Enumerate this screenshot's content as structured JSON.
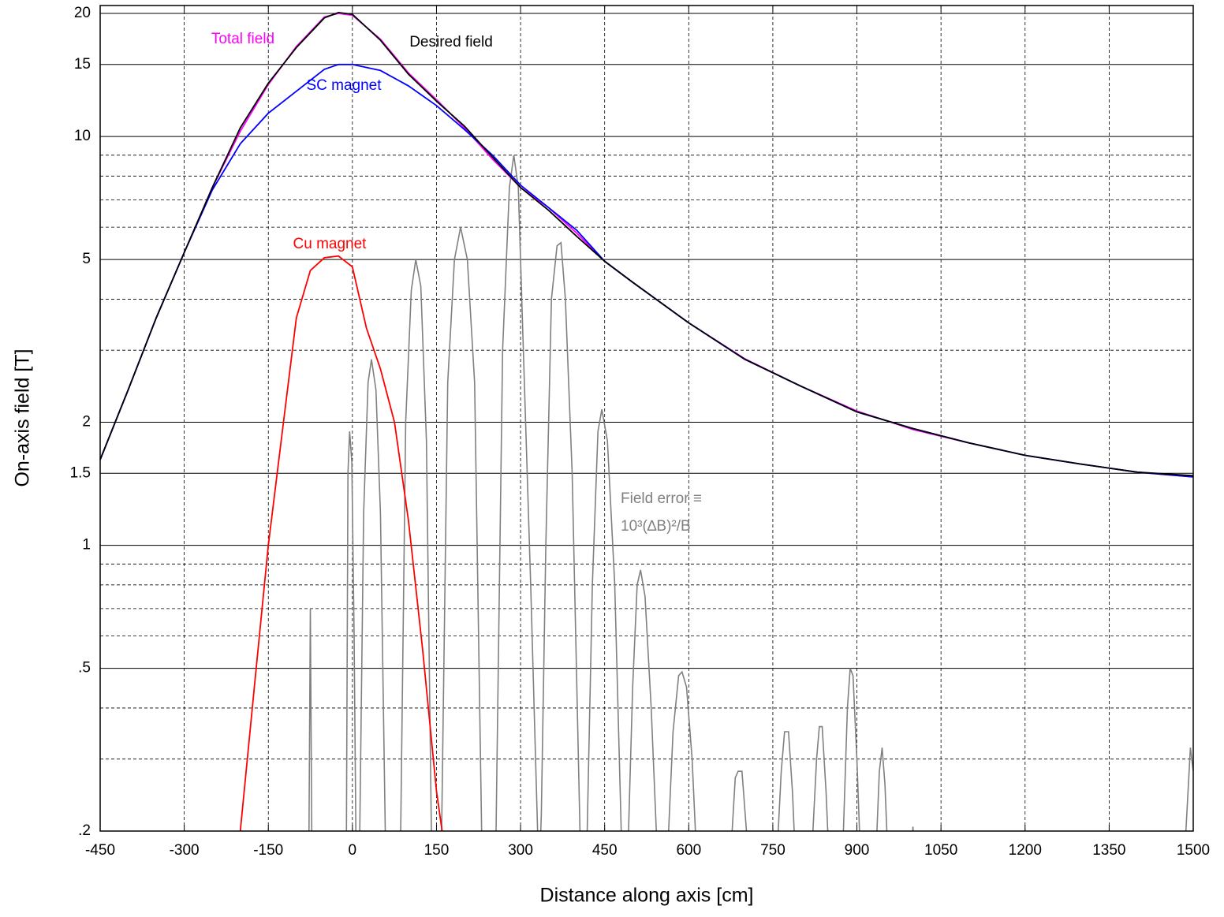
{
  "chart_data": {
    "type": "line",
    "xlabel": "Distance along axis  [cm]",
    "ylabel": "On-axis field  [T]",
    "log_y": true,
    "grid": true,
    "xlim": [
      -450,
      1500
    ],
    "xticks": [
      -450,
      -300,
      -150,
      0,
      150,
      300,
      450,
      600,
      750,
      900,
      1050,
      1200,
      1350,
      1500
    ],
    "ylim": [
      0.2,
      20
    ],
    "yticks": [
      {
        "value": 0.2,
        "label": ".2"
      },
      {
        "value": 0.5,
        "label": ".5"
      },
      1,
      1.5,
      2,
      5,
      10,
      15,
      20
    ],
    "minor_grid": [
      0.3,
      0.4,
      0.6,
      0.7,
      0.8,
      0.9,
      3,
      4,
      6,
      7,
      8,
      9
    ],
    "series": [
      {
        "name": "Total field",
        "color": "#ff00ff",
        "x": [
          -450,
          -400,
          -350,
          -300,
          -250,
          -200,
          -150,
          -100,
          -50,
          -25,
          0,
          50,
          100,
          150,
          200,
          250,
          300,
          350,
          400,
          450,
          500,
          600,
          700,
          800,
          900,
          1000,
          1100,
          1200,
          1300,
          1400,
          1500
        ],
        "values": [
          1.62,
          2.4,
          3.6,
          5.2,
          7.5,
          10.3,
          13.4,
          16.6,
          19.6,
          20.0,
          19.8,
          17.3,
          14.3,
          12.3,
          10.5,
          8.8,
          7.5,
          6.7,
          5.8,
          4.95,
          4.4,
          3.5,
          2.86,
          2.45,
          2.13,
          1.92,
          1.78,
          1.66,
          1.58,
          1.51,
          1.47
        ]
      },
      {
        "name": "Desired field",
        "color": "#000000",
        "x": [
          -450,
          -400,
          -350,
          -300,
          -250,
          -200,
          -150,
          -100,
          -50,
          -25,
          0,
          50,
          100,
          150,
          200,
          250,
          300,
          350,
          400,
          450,
          500,
          600,
          700,
          800,
          900,
          1000,
          1100,
          1200,
          1300,
          1400,
          1500
        ],
        "values": [
          1.62,
          2.4,
          3.6,
          5.2,
          7.5,
          10.5,
          13.5,
          16.5,
          19.5,
          20.1,
          19.9,
          17.2,
          14.2,
          12.2,
          10.6,
          8.9,
          7.5,
          6.6,
          5.7,
          4.95,
          4.4,
          3.5,
          2.85,
          2.45,
          2.12,
          1.93,
          1.78,
          1.66,
          1.58,
          1.51,
          1.48
        ]
      },
      {
        "name": "SC magnet",
        "color": "#0000ff",
        "x": [
          -450,
          -400,
          -350,
          -300,
          -250,
          -200,
          -150,
          -100,
          -50,
          -25,
          0,
          50,
          100,
          150,
          200,
          250,
          300,
          350,
          400,
          450,
          500,
          600,
          700,
          800,
          900,
          1000,
          1100,
          1200,
          1300,
          1400,
          1500
        ],
        "values": [
          1.62,
          2.4,
          3.6,
          5.2,
          7.4,
          9.6,
          11.4,
          12.9,
          14.6,
          15.0,
          15.0,
          14.5,
          13.3,
          11.9,
          10.4,
          9.0,
          7.6,
          6.7,
          5.9,
          4.95,
          4.4,
          3.5,
          2.85,
          2.45,
          2.12,
          1.93,
          1.78,
          1.66,
          1.58,
          1.51,
          1.47
        ]
      },
      {
        "name": "Cu magnet",
        "color": "#ff0000",
        "x": [
          -200,
          -175,
          -150,
          -125,
          -100,
          -75,
          -50,
          -25,
          0,
          25,
          50,
          75,
          100,
          125,
          150,
          160
        ],
        "values": [
          0.2,
          0.45,
          1.0,
          1.9,
          3.6,
          4.7,
          5.05,
          5.1,
          4.8,
          3.4,
          2.7,
          2.0,
          1.15,
          0.56,
          0.25,
          0.2
        ]
      },
      {
        "name": "Field error ≡",
        "color": "#808080",
        "x": [
          -78,
          -75,
          -72,
          -11,
          -8,
          -5,
          -1,
          3,
          7,
          12,
          20,
          28,
          34,
          42,
          50,
          60,
          85,
          95,
          105,
          113,
          122,
          132,
          142,
          158,
          170,
          182,
          193,
          205,
          218,
          232,
          255,
          268,
          280,
          288,
          296,
          305,
          318,
          327,
          333,
          337,
          345,
          355,
          365,
          372,
          380,
          392,
          408,
          417,
          428,
          438,
          445,
          455,
          468,
          482,
          490,
          500,
          508,
          514,
          522,
          533,
          546,
          560,
          572,
          582,
          588,
          596,
          606,
          616,
          672,
          683,
          688,
          695,
          703,
          710,
          755,
          765,
          771,
          778,
          785,
          792,
          817,
          828,
          833,
          838,
          845,
          852,
          873,
          883,
          888,
          893,
          900,
          908,
          932,
          940,
          945,
          950,
          957,
          995,
          1000,
          1005,
          1482,
          1495,
          1500
        ],
        "values": [
          0.15,
          0.7,
          0.15,
          0.15,
          1.5,
          1.9,
          1.6,
          0.6,
          0.15,
          0.15,
          1.2,
          2.5,
          2.85,
          2.4,
          1.2,
          0.15,
          0.15,
          2.0,
          4.2,
          5.0,
          4.3,
          1.8,
          0.15,
          0.15,
          2.5,
          5.0,
          6.0,
          5.0,
          2.5,
          0.15,
          0.15,
          3.0,
          7.5,
          9.0,
          7.5,
          3.0,
          0.8,
          0.29,
          0.15,
          0.22,
          1.0,
          4.0,
          5.4,
          5.5,
          4.0,
          1.5,
          0.15,
          0.15,
          0.8,
          1.9,
          2.15,
          1.8,
          0.8,
          0.15,
          0.15,
          0.45,
          0.8,
          0.87,
          0.75,
          0.4,
          0.15,
          0.15,
          0.35,
          0.48,
          0.49,
          0.45,
          0.3,
          0.15,
          0.15,
          0.27,
          0.28,
          0.28,
          0.2,
          0.15,
          0.15,
          0.28,
          0.35,
          0.35,
          0.25,
          0.15,
          0.15,
          0.3,
          0.36,
          0.36,
          0.25,
          0.15,
          0.15,
          0.4,
          0.5,
          0.48,
          0.3,
          0.15,
          0.15,
          0.28,
          0.32,
          0.26,
          0.15,
          0.15,
          0.205,
          0.15,
          0.15,
          0.32,
          0.28
        ]
      }
    ],
    "annotations": [
      "10³(∆B)²/B"
    ]
  }
}
